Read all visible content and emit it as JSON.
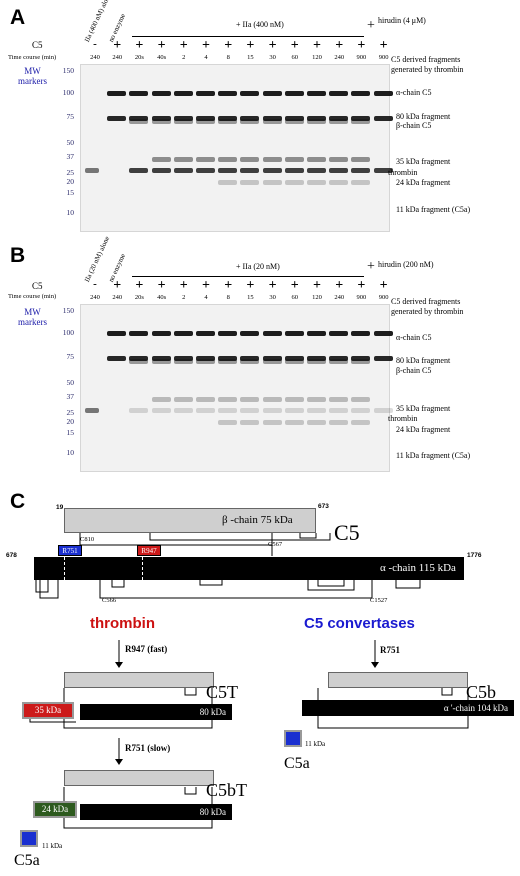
{
  "panels": {
    "a": {
      "letter": "A",
      "c5_label": "C5",
      "time_label": "Time course (min)",
      "mw_label": "MW\nmarkers",
      "group_header": "+ IIa (400 nM)",
      "hirudin_header": "hirudin (4 μM)",
      "lane_rot": [
        "IIa (400 nM) alone",
        "no enzyme"
      ],
      "signs": [
        "-",
        "+",
        "+",
        "+",
        "+",
        "+",
        "+",
        "+",
        "+",
        "+",
        "+",
        "+",
        "+",
        "+"
      ],
      "times": [
        "240",
        "240",
        "20s",
        "40s",
        "2",
        "4",
        "8",
        "15",
        "30",
        "60",
        "120",
        "240",
        "900",
        "900"
      ],
      "mw": [
        "150",
        "100",
        "75",
        "50",
        "37",
        "25",
        "20",
        "15",
        "10"
      ],
      "annotations": {
        "header": "C5 derived fragments\ngenerated by thrombin",
        "alpha": "α-chain C5",
        "f80": "80 kDa fragment",
        "beta": "β-chain C5",
        "f35": "35 kDa fragment",
        "thrombin": "thrombin",
        "f24": "24 kDa fragment",
        "f11": "11 kDa fragment (C5a)"
      }
    },
    "b": {
      "letter": "B",
      "c5_label": "C5",
      "time_label": "Time course (min)",
      "mw_label": "MW\nmarkers",
      "group_header": "+ IIa (20 nM)",
      "hirudin_header": "hirudin (200 nM)",
      "lane_rot": [
        "IIa (20 nM) alone",
        "no enzyme"
      ],
      "signs": [
        "-",
        "+",
        "+",
        "+",
        "+",
        "+",
        "+",
        "+",
        "+",
        "+",
        "+",
        "+",
        "+",
        "+"
      ],
      "times": [
        "240",
        "240",
        "20s",
        "40s",
        "2",
        "4",
        "8",
        "15",
        "30",
        "60",
        "120",
        "240",
        "900",
        "900"
      ],
      "mw": [
        "150",
        "100",
        "75",
        "50",
        "37",
        "25",
        "20",
        "15",
        "10"
      ],
      "annotations": {
        "header": "C5 derived fragments\ngenerated by thrombin",
        "alpha": "α-chain C5",
        "f80": "80 kDa fragment",
        "beta": "β-chain C5",
        "f35": "35 kDa fragment",
        "thrombin": "thrombin",
        "f24": "24 kDa fragment",
        "f11": "11 kDa fragment (C5a)"
      }
    },
    "c": {
      "letter": "C",
      "beta_start": "19",
      "beta_end": "673",
      "beta_label": "β -chain 75 kDa",
      "c5_label": "C5",
      "alpha_start": "678",
      "alpha_end": "1776",
      "alpha_label": "α -chain 115 kDa",
      "cys": [
        "C810",
        "C567",
        "C566",
        "C1527"
      ],
      "r751": "R751",
      "r947": "R947",
      "thrombin_title": "thrombin",
      "convertase_title": "C5 convertases",
      "step1": "R947 (fast)",
      "step2": "R751 (slow)",
      "conv_step": "R751",
      "c5t": "C5T",
      "c5bt": "C5bT",
      "c5b": "C5b",
      "k35": "35 kDa",
      "k80a": "80 kDa",
      "k24": "24 kDa",
      "k80b": "80 kDa",
      "alpha_prime": "α '-chain 104 kDa",
      "k11a": "11 kDa",
      "k11b": "11 kDa",
      "c5a_a": "C5a",
      "c5a_b": "C5a",
      "colors": {
        "thrombin": "#cc1111",
        "convertase": "#1a1ad0",
        "r947_box": "#cc1a1a",
        "r751_box": "#1a2fd0",
        "k24_box": "#2d5a1e",
        "gray_chain": "#cfcfcf"
      }
    }
  }
}
